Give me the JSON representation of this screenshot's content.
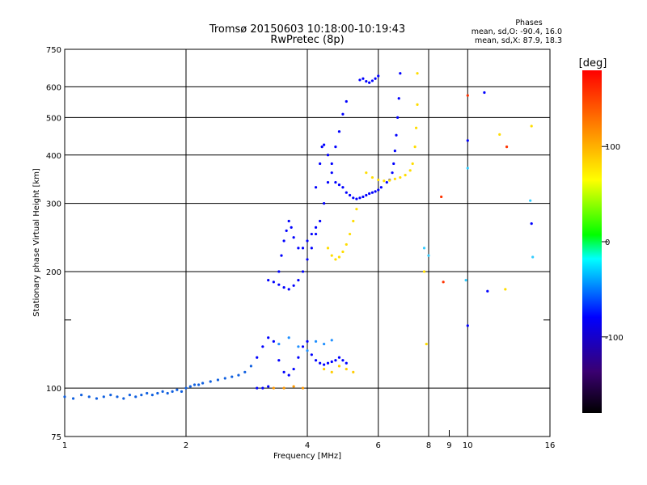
{
  "chart_data": {
    "type": "scatter",
    "title": "Tromsø 20150603 10:18:00-10:19:43",
    "subtitle": "RwPretec (8p)",
    "xlabel": "Frequency [MHz]",
    "ylabel": "Stationary phase Virtual Height [km]",
    "x_scale": "log",
    "y_scale": "log",
    "xlim": [
      1,
      16
    ],
    "ylim": [
      75,
      750
    ],
    "x_ticks": [
      1,
      2,
      4,
      6,
      8,
      10,
      16
    ],
    "x_ticks_minor": [
      9
    ],
    "y_ticks": [
      75,
      100,
      200,
      300,
      400,
      500,
      600,
      750
    ],
    "y_ticks_minor": [
      150
    ],
    "grid": true,
    "legend": {
      "heading": "Phases",
      "lines": [
        "mean, sd,O: -90.4, 16.0",
        "mean, sd,X: 87.9, 18.3"
      ],
      "placement": "top-right"
    },
    "colorbar": {
      "label": "[deg]",
      "range": [
        -180,
        180
      ],
      "ticks": [
        -100,
        0,
        100
      ],
      "colors": [
        "#000000",
        "#3a0070",
        "#0000ff",
        "#00ffff",
        "#00ff00",
        "#ffff00",
        "#ff7f00",
        "#ff0000"
      ]
    },
    "series": [
      {
        "color": "#1060e0",
        "x": [
          1.0,
          1.05,
          1.1,
          1.15,
          1.2,
          1.25,
          1.3,
          1.35,
          1.4,
          1.45,
          1.5,
          1.55,
          1.6,
          1.65,
          1.7,
          1.75,
          1.8,
          1.85,
          1.9,
          1.95,
          2.0,
          2.05,
          2.1,
          2.15,
          2.2,
          2.3,
          2.4,
          2.5,
          2.6,
          2.7,
          2.8,
          2.9
        ],
        "y": [
          95,
          94,
          96,
          95,
          94,
          95,
          96,
          95,
          94,
          96,
          95,
          96,
          97,
          96,
          97,
          98,
          97,
          98,
          99,
          98,
          100,
          101,
          102,
          102,
          103,
          104,
          105,
          106,
          107,
          108,
          110,
          114
        ]
      },
      {
        "color": "#0000ff",
        "x": [
          3.0,
          3.1,
          3.2,
          3.3,
          3.4,
          3.5,
          3.6,
          3.7,
          3.8,
          3.9,
          4.0,
          4.1,
          4.2,
          4.3,
          4.4,
          4.5,
          4.6,
          4.7,
          4.8,
          4.9,
          5.0
        ],
        "y": [
          120,
          128,
          135,
          132,
          118,
          110,
          108,
          112,
          120,
          128,
          132,
          122,
          118,
          116,
          115,
          116,
          117,
          118,
          120,
          118,
          116
        ]
      },
      {
        "color": "#0000ff",
        "x": [
          3.2,
          3.3,
          3.4,
          3.5,
          3.6,
          3.7,
          3.8,
          3.9,
          4.0,
          4.1,
          4.2,
          4.3,
          4.4,
          4.5,
          4.6,
          4.7,
          4.8,
          4.9,
          5.0
        ],
        "y": [
          190,
          188,
          185,
          182,
          180,
          184,
          190,
          200,
          215,
          230,
          250,
          270,
          300,
          340,
          380,
          420,
          460,
          510,
          550
        ]
      },
      {
        "color": "#0000ff",
        "x": [
          3.4,
          3.45,
          3.5,
          3.55,
          3.6,
          3.65,
          3.7,
          3.8,
          3.9,
          4.0,
          4.1,
          4.2
        ],
        "y": [
          200,
          220,
          240,
          255,
          270,
          260,
          245,
          230,
          230,
          240,
          250,
          260
        ]
      },
      {
        "color": "#0000ff",
        "x": [
          4.2,
          4.3,
          4.35,
          4.4,
          4.5,
          4.6,
          4.7,
          4.8,
          4.9,
          5.0,
          5.1,
          5.2,
          5.3,
          5.4,
          5.5,
          5.6,
          5.7,
          5.8,
          5.9,
          6.0,
          6.1
        ],
        "y": [
          330,
          380,
          420,
          425,
          400,
          360,
          340,
          335,
          330,
          320,
          315,
          310,
          308,
          310,
          312,
          315,
          318,
          320,
          322,
          325,
          330
        ]
      },
      {
        "color": "#0000ff",
        "x": [
          5.4,
          5.5,
          5.6,
          5.7,
          5.8,
          5.9,
          6.0
        ],
        "y": [
          625,
          630,
          620,
          615,
          622,
          630,
          640
        ]
      },
      {
        "color": "#0000ff",
        "x": [
          6.3,
          6.4,
          6.5,
          6.55,
          6.6,
          6.65,
          6.7,
          6.75,
          6.8
        ],
        "y": [
          340,
          345,
          360,
          380,
          410,
          450,
          500,
          560,
          650
        ]
      },
      {
        "color": "#ffdd00",
        "x": [
          4.5,
          4.6,
          4.7,
          4.8,
          4.9,
          5.0,
          5.1,
          5.2,
          5.3
        ],
        "y": [
          230,
          220,
          215,
          218,
          225,
          235,
          250,
          270,
          290
        ]
      },
      {
        "color": "#ffdd00",
        "x": [
          5.6,
          5.8,
          6.0,
          6.2,
          6.4,
          6.6,
          6.8,
          7.0,
          7.2,
          7.3,
          7.4,
          7.45,
          7.5,
          7.5
        ],
        "y": [
          360,
          350,
          345,
          343,
          344,
          347,
          350,
          355,
          365,
          380,
          420,
          470,
          540,
          650
        ]
      },
      {
        "color": "#ffcc00",
        "x": [
          4.4,
          4.6,
          4.8,
          5.0,
          5.2
        ],
        "y": [
          112,
          110,
          114,
          112,
          110
        ]
      },
      {
        "color": "#2090ff",
        "x": [
          3.4,
          3.6,
          3.8,
          4.0,
          4.2,
          4.4,
          4.6
        ],
        "y": [
          130,
          135,
          128,
          125,
          132,
          130,
          133
        ]
      },
      {
        "color": "#ff9900",
        "x": [
          3.3,
          3.5,
          3.7,
          3.9
        ],
        "y": [
          100,
          100,
          101,
          100
        ]
      },
      {
        "color": "#0000ff",
        "x": [
          3.0,
          3.1,
          3.2
        ],
        "y": [
          100,
          100,
          101
        ]
      },
      {
        "color": "#ff3300",
        "x": [
          8.6,
          8.7,
          10.0,
          12.5
        ],
        "y": [
          312,
          188,
          570,
          420
        ]
      },
      {
        "color": "#33ccff",
        "x": [
          7.8,
          8.0,
          9.9,
          10.0,
          14.3,
          14.5
        ],
        "y": [
          230,
          220,
          190,
          370,
          305,
          218
        ]
      },
      {
        "color": "#ffdd00",
        "x": [
          7.8,
          7.9,
          12.0,
          12.4,
          14.4
        ],
        "y": [
          200,
          130,
          452,
          180,
          475
        ]
      },
      {
        "color": "#0000ff",
        "x": [
          10.0,
          10.0,
          11.0,
          14.4,
          11.2
        ],
        "y": [
          436,
          145,
          580,
          266,
          178
        ]
      }
    ]
  }
}
